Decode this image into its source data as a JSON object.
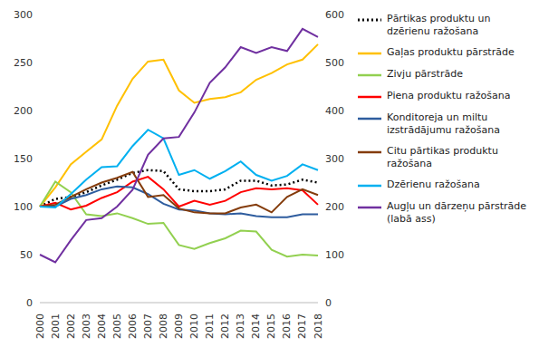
{
  "chart_data": {
    "type": "line",
    "categories": [
      "2000",
      "2001",
      "2002",
      "2003",
      "2004",
      "2005",
      "2006",
      "2007",
      "2008",
      "2009",
      "2010",
      "2011",
      "2012",
      "2013",
      "2014",
      "2015",
      "2016",
      "2017",
      "2018"
    ],
    "ylim": [
      0,
      300
    ],
    "yticks": [
      0,
      50,
      100,
      150,
      200,
      250,
      300
    ],
    "y2lim": [
      0,
      600
    ],
    "y2ticks": [
      0,
      100,
      200,
      300,
      400,
      500,
      600
    ],
    "grid": false,
    "legend": "right",
    "series": [
      {
        "name": "Pārtikas produktu un dzērienu ražošana",
        "color": "#000000",
        "line_style": "dotted",
        "values": [
          100,
          108,
          110,
          115,
          122,
          128,
          135,
          138,
          137,
          118,
          116,
          116,
          118,
          127,
          127,
          122,
          123,
          128,
          125
        ]
      },
      {
        "name": "Gaļas produktu pārstrāde",
        "color": "#FFC000",
        "line_style": "solid",
        "values": [
          100,
          120,
          144,
          157,
          170,
          205,
          233,
          251,
          253,
          221,
          208,
          212,
          214,
          219,
          232,
          239,
          248,
          253,
          269
        ]
      },
      {
        "name": "Zivju pārstrāde",
        "color": "#92D050",
        "line_style": "solid",
        "values": [
          100,
          126,
          115,
          92,
          90,
          93,
          88,
          82,
          83,
          60,
          56,
          62,
          67,
          75,
          74,
          55,
          48,
          50,
          49
        ]
      },
      {
        "name": "Piena produktu ražošana",
        "color": "#FF0000",
        "line_style": "solid",
        "values": [
          100,
          104,
          97,
          101,
          109,
          115,
          126,
          131,
          118,
          100,
          106,
          102,
          106,
          115,
          119,
          118,
          119,
          117,
          102
        ]
      },
      {
        "name": "Konditoreja un miltu izstrādājumu ražošana",
        "color": "#2E5C9E",
        "line_style": "solid",
        "values": [
          100,
          100,
          108,
          112,
          118,
          121,
          120,
          113,
          103,
          97,
          96,
          93,
          92,
          93,
          90,
          89,
          89,
          92,
          92
        ]
      },
      {
        "name": "Citu pārtikas produktu ražošana",
        "color": "#843C0C",
        "line_style": "solid",
        "values": [
          100,
          102,
          110,
          118,
          125,
          130,
          136,
          110,
          112,
          98,
          94,
          93,
          93,
          99,
          102,
          94,
          110,
          118,
          112
        ]
      },
      {
        "name": "Dzērienu ražošana",
        "color": "#00B0F0",
        "line_style": "solid",
        "values": [
          100,
          99,
          113,
          128,
          141,
          142,
          163,
          180,
          171,
          133,
          138,
          129,
          137,
          147,
          133,
          127,
          132,
          144,
          138
        ]
      },
      {
        "name": "Augļu un dārzeņu pārstrāde (labā ass)",
        "color": "#7030A0",
        "line_style": "solid",
        "axis": "y2",
        "values": [
          100,
          84,
          130,
          172,
          176,
          200,
          235,
          308,
          342,
          345,
          396,
          458,
          490,
          532,
          520,
          532,
          524,
          570,
          553
        ]
      }
    ]
  }
}
